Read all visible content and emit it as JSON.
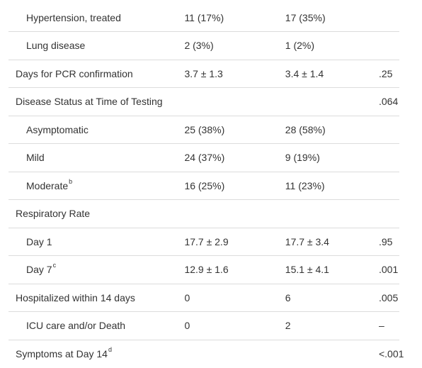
{
  "table": {
    "rows": [
      {
        "label": "Hypertension, treated",
        "sup": "",
        "indent": true,
        "g1": "11 (17%)",
        "g2": "17 (35%)",
        "p": ""
      },
      {
        "label": "Lung disease",
        "sup": "",
        "indent": true,
        "g1": "2 (3%)",
        "g2": "1 (2%)",
        "p": ""
      },
      {
        "label": "Days for PCR confirmation",
        "sup": "",
        "indent": false,
        "g1": "3.7 ± 1.3",
        "g2": "3.4 ± 1.4",
        "p": ".25"
      },
      {
        "label": "Disease Status at Time of Testing",
        "sup": "",
        "indent": false,
        "g1": "",
        "g2": "",
        "p": ".064"
      },
      {
        "label": "Asymptomatic",
        "sup": "",
        "indent": true,
        "g1": "25 (38%)",
        "g2": "28 (58%)",
        "p": ""
      },
      {
        "label": "Mild",
        "sup": "",
        "indent": true,
        "g1": "24 (37%)",
        "g2": "9 (19%)",
        "p": ""
      },
      {
        "label": "Moderate",
        "sup": "b",
        "indent": true,
        "g1": "16 (25%)",
        "g2": "11 (23%)",
        "p": ""
      },
      {
        "label": "Respiratory Rate",
        "sup": "",
        "indent": false,
        "g1": "",
        "g2": "",
        "p": ""
      },
      {
        "label": "Day 1",
        "sup": "",
        "indent": true,
        "g1": "17.7 ± 2.9",
        "g2": "17.7 ± 3.4",
        "p": ".95"
      },
      {
        "label": "Day 7",
        "sup": "c",
        "indent": true,
        "g1": "12.9 ± 1.6",
        "g2": "15.1 ± 4.1",
        "p": ".001"
      },
      {
        "label": "Hospitalized within 14 days",
        "sup": "",
        "indent": false,
        "g1": "0",
        "g2": "6",
        "p": ".005"
      },
      {
        "label": "ICU care and/or Death",
        "sup": "",
        "indent": true,
        "g1": "0",
        "g2": "2",
        "p": "–"
      },
      {
        "label": "Symptoms at Day 14",
        "sup": "d",
        "indent": false,
        "g1": "",
        "g2": "",
        "p": "<.001"
      }
    ]
  }
}
